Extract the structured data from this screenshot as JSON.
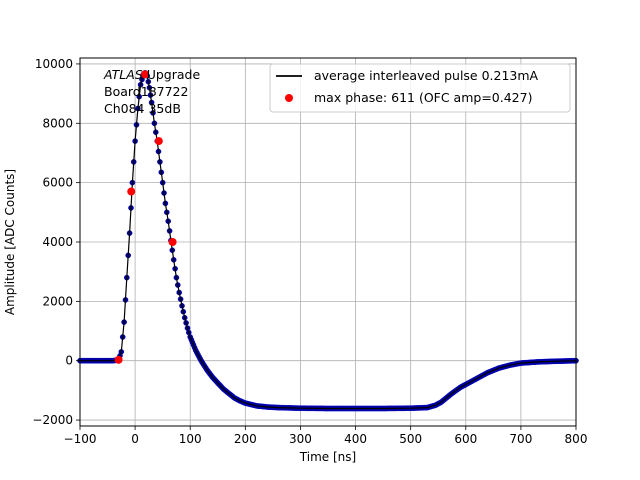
{
  "chart_data": {
    "type": "scatter",
    "title": "",
    "xlabel": "Time [ns]",
    "ylabel": "Amplitude [ADC Counts]",
    "xlim": [
      -100,
      800
    ],
    "ylim": [
      -2200,
      10200
    ],
    "xticks": [
      -100,
      0,
      100,
      200,
      300,
      400,
      500,
      600,
      700,
      800
    ],
    "yticks": [
      -2000,
      0,
      2000,
      4000,
      6000,
      8000,
      10000
    ],
    "grid": true,
    "legend_position": "top-right",
    "annotation": {
      "lines": [
        {
          "italic": "ATLAS",
          "rest": " Upgrade"
        },
        {
          "italic": "",
          "rest": " Board187722"
        },
        {
          "italic": "",
          "rest": " Ch084 35dB"
        }
      ]
    },
    "series": [
      {
        "name": "average interleaved pulse 0.213mA",
        "kind": "line-with-markers",
        "color": "#000000",
        "marker_color": "#00008b",
        "x": [
          -100,
          -60,
          -40,
          -30,
          -25,
          -20,
          -15,
          -10,
          -5,
          0,
          5,
          10,
          15,
          18,
          22,
          26,
          30,
          35,
          40,
          45,
          50,
          55,
          60,
          65,
          70,
          75,
          80,
          85,
          90,
          95,
          100,
          110,
          120,
          130,
          140,
          150,
          160,
          170,
          180,
          190,
          200,
          220,
          240,
          260,
          280,
          300,
          350,
          400,
          450,
          500,
          530,
          545,
          555,
          565,
          575,
          590,
          600,
          620,
          640,
          660,
          680,
          700,
          730,
          760,
          800
        ],
        "y": [
          0,
          0,
          0,
          30,
          300,
          1300,
          2800,
          4300,
          6000,
          7400,
          8500,
          9300,
          9650,
          9700,
          9600,
          9200,
          8700,
          8000,
          7400,
          6700,
          6000,
          5300,
          4700,
          4050,
          3400,
          2800,
          2300,
          1850,
          1450,
          1100,
          800,
          350,
          0,
          -300,
          -550,
          -750,
          -950,
          -1100,
          -1250,
          -1350,
          -1430,
          -1520,
          -1560,
          -1580,
          -1590,
          -1600,
          -1610,
          -1610,
          -1610,
          -1600,
          -1580,
          -1500,
          -1400,
          -1250,
          -1100,
          -900,
          -800,
          -600,
          -400,
          -250,
          -150,
          -80,
          -40,
          -20,
          0
        ]
      },
      {
        "name": "max phase: 611 (OFC amp=0.427)",
        "kind": "markers",
        "color": "#ff0000",
        "x": [
          -30,
          -7,
          18,
          43,
          68
        ],
        "y": [
          30,
          5700,
          9650,
          7400,
          4000
        ]
      }
    ]
  }
}
